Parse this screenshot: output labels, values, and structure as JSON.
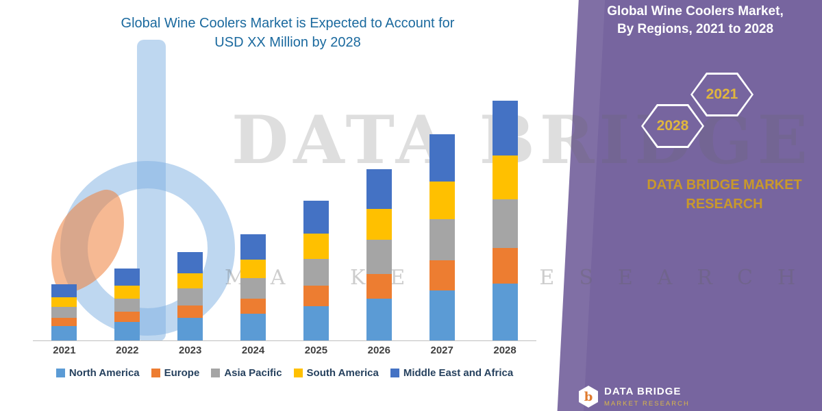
{
  "chart": {
    "title_line1": "Global Wine Coolers Market is Expected to Account for",
    "title_line2": "USD XX Million by 2028",
    "title_color": "#1A699E"
  },
  "chart_data": {
    "type": "bar",
    "stacked": true,
    "title": "Global Wine Coolers Market is Expected to Account for USD XX Million by 2028",
    "xlabel": "",
    "ylabel": "",
    "value_axis_labels_visible": false,
    "grid": false,
    "legend_position": "bottom",
    "ylim": [
      0,
      380
    ],
    "units": "relative (actual values masked as 'USD XX Million')",
    "categories": [
      "2021",
      "2022",
      "2023",
      "2024",
      "2025",
      "2026",
      "2027",
      "2028"
    ],
    "series": [
      {
        "name": "North America",
        "color": "#5B9BD5",
        "values": [
          22,
          28,
          34,
          40,
          52,
          63,
          75,
          86
        ]
      },
      {
        "name": "Europe",
        "color": "#ED7D31",
        "values": [
          12,
          15,
          19,
          23,
          30,
          37,
          45,
          53
        ]
      },
      {
        "name": "Asia Pacific",
        "color": "#A5A5A5",
        "values": [
          16,
          20,
          25,
          31,
          41,
          51,
          62,
          73
        ]
      },
      {
        "name": "South America",
        "color": "#FFC000",
        "values": [
          15,
          19,
          23,
          28,
          38,
          47,
          57,
          66
        ]
      },
      {
        "name": "Middle East and Africa",
        "color": "#4472C4",
        "values": [
          20,
          26,
          32,
          38,
          49,
          60,
          71,
          82
        ]
      }
    ]
  },
  "panel": {
    "bg_color": "#77659F",
    "header_line1": "Global Wine Coolers Market,",
    "header_line2": "By Regions, 2021 to 2028",
    "hexagon_left_label": "2028",
    "hexagon_right_label": "2021",
    "hexagon_label_color": "#E0B63E",
    "brand_line1": "DATA BRIDGE MARKET",
    "brand_line2": "RESEARCH",
    "brand_color": "#C9992B",
    "footer_logo_glyph": "b",
    "footer_logo_text": "DATA BRIDGE",
    "footer_logo_subtext": "MARKET RESEARCH"
  },
  "watermarks": {
    "big_text": "DATA BRIDGE",
    "spread_text": "MARKET RESEARCH"
  }
}
